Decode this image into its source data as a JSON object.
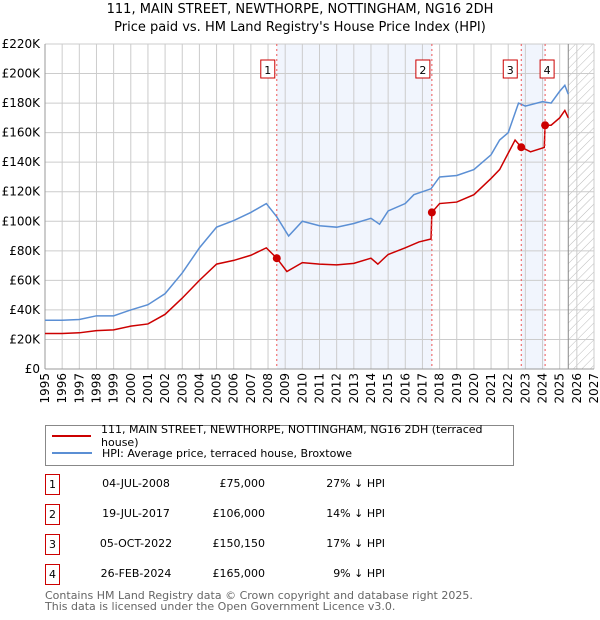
{
  "title_line1": "111, MAIN STREET, NEWTHORPE, NOTTINGHAM, NG16 2DH",
  "title_line2": "Price paid vs. HM Land Registry's House Price Index (HPI)",
  "chart_data": {
    "type": "line",
    "xlim": [
      1995,
      2027
    ],
    "ylim": [
      0,
      220000
    ],
    "x_ticks": [
      "1995",
      "1996",
      "1997",
      "1998",
      "1999",
      "2000",
      "2001",
      "2002",
      "2003",
      "2004",
      "2005",
      "2006",
      "2007",
      "2008",
      "2009",
      "2010",
      "2011",
      "2012",
      "2013",
      "2014",
      "2015",
      "2016",
      "2017",
      "2018",
      "2019",
      "2020",
      "2021",
      "2022",
      "2023",
      "2024",
      "2025",
      "2026",
      "2027"
    ],
    "y_ticks": [
      {
        "v": 0,
        "label": "£0"
      },
      {
        "v": 20000,
        "label": "£20K"
      },
      {
        "v": 40000,
        "label": "£40K"
      },
      {
        "v": 60000,
        "label": "£60K"
      },
      {
        "v": 80000,
        "label": "£80K"
      },
      {
        "v": 100000,
        "label": "£100K"
      },
      {
        "v": 120000,
        "label": "£120K"
      },
      {
        "v": 140000,
        "label": "£140K"
      },
      {
        "v": 160000,
        "label": "£160K"
      },
      {
        "v": 180000,
        "label": "£180K"
      },
      {
        "v": 200000,
        "label": "£200K"
      },
      {
        "v": 220000,
        "label": "£220K"
      }
    ],
    "grid": true,
    "shaded_ranges": [
      [
        2008.51,
        2017.55
      ],
      [
        2022.76,
        2024.15
      ]
    ],
    "forecast_start": 2025.5,
    "series": [
      {
        "name": "111, MAIN STREET, NEWTHORPE, NOTTINGHAM, NG16 2DH (terraced house)",
        "color": "#cc0000",
        "points": [
          [
            1995,
            24000
          ],
          [
            1996,
            24000
          ],
          [
            1997,
            24500
          ],
          [
            1998,
            26000
          ],
          [
            1999,
            26500
          ],
          [
            2000,
            29000
          ],
          [
            2001,
            30500
          ],
          [
            2002,
            37000
          ],
          [
            2003,
            48000
          ],
          [
            2004,
            60000
          ],
          [
            2005,
            71000
          ],
          [
            2006,
            73500
          ],
          [
            2007,
            77000
          ],
          [
            2007.9,
            82000
          ],
          [
            2008.51,
            75000
          ],
          [
            2009.1,
            66000
          ],
          [
            2010,
            72000
          ],
          [
            2011,
            71000
          ],
          [
            2012,
            70500
          ],
          [
            2013,
            71500
          ],
          [
            2014,
            75000
          ],
          [
            2014.4,
            71000
          ],
          [
            2015,
            77500
          ],
          [
            2016,
            82000
          ],
          [
            2016.8,
            86000
          ],
          [
            2017.5,
            88000
          ],
          [
            2017.55,
            106000
          ],
          [
            2018,
            112000
          ],
          [
            2019,
            113000
          ],
          [
            2020,
            118000
          ],
          [
            2021,
            129000
          ],
          [
            2021.5,
            135000
          ],
          [
            2022.4,
            155000
          ],
          [
            2022.76,
            150150
          ],
          [
            2023.3,
            147000
          ],
          [
            2024.1,
            150000
          ],
          [
            2024.15,
            165000
          ],
          [
            2024.5,
            165000
          ],
          [
            2025,
            170000
          ],
          [
            2025.3,
            175000
          ],
          [
            2025.5,
            170000
          ]
        ]
      },
      {
        "name": "HPI: Average price, terraced house, Broxtowe",
        "color": "#5b8fd4",
        "points": [
          [
            1995,
            33000
          ],
          [
            1996,
            33000
          ],
          [
            1997,
            33500
          ],
          [
            1998,
            36000
          ],
          [
            1999,
            36000
          ],
          [
            2000,
            40000
          ],
          [
            2001,
            43500
          ],
          [
            2002,
            51000
          ],
          [
            2003,
            65000
          ],
          [
            2004,
            82000
          ],
          [
            2005,
            96000
          ],
          [
            2006,
            100500
          ],
          [
            2007,
            106000
          ],
          [
            2007.9,
            112000
          ],
          [
            2008.51,
            103000
          ],
          [
            2009.2,
            90000
          ],
          [
            2010,
            100000
          ],
          [
            2011,
            97000
          ],
          [
            2012,
            96000
          ],
          [
            2013,
            98500
          ],
          [
            2014,
            102000
          ],
          [
            2014.5,
            98000
          ],
          [
            2015,
            107000
          ],
          [
            2016,
            112000
          ],
          [
            2016.5,
            118000
          ],
          [
            2017.5,
            122000
          ],
          [
            2018,
            130000
          ],
          [
            2019,
            131000
          ],
          [
            2020,
            135000
          ],
          [
            2021,
            145000
          ],
          [
            2021.5,
            155000
          ],
          [
            2022,
            160000
          ],
          [
            2022.6,
            180000
          ],
          [
            2023,
            178000
          ],
          [
            2024,
            181000
          ],
          [
            2024.5,
            180000
          ],
          [
            2025,
            188000
          ],
          [
            2025.3,
            192000
          ],
          [
            2025.5,
            186000
          ]
        ]
      }
    ],
    "sales": [
      {
        "n": "1",
        "x": 2008.51,
        "y": 75000
      },
      {
        "n": "2",
        "x": 2017.55,
        "y": 106000
      },
      {
        "n": "3",
        "x": 2022.76,
        "y": 150150
      },
      {
        "n": "4",
        "x": 2024.15,
        "y": 165000
      }
    ]
  },
  "legend": {
    "property": "111, MAIN STREET, NEWTHORPE, NOTTINGHAM, NG16 2DH (terraced house)",
    "hpi": "HPI: Average price, terraced house, Broxtowe"
  },
  "transactions": [
    {
      "n": "1",
      "date": "04-JUL-2008",
      "price": "£75,000",
      "pct": "27% ↓ HPI"
    },
    {
      "n": "2",
      "date": "19-JUL-2017",
      "price": "£106,000",
      "pct": "14% ↓ HPI"
    },
    {
      "n": "3",
      "date": "05-OCT-2022",
      "price": "£150,150",
      "pct": "17% ↓ HPI"
    },
    {
      "n": "4",
      "date": "26-FEB-2024",
      "price": "£165,000",
      "pct": "9% ↓ HPI"
    }
  ],
  "footer_line1": "Contains HM Land Registry data © Crown copyright and database right 2025.",
  "footer_line2": "This data is licensed under the Open Government Licence v3.0."
}
